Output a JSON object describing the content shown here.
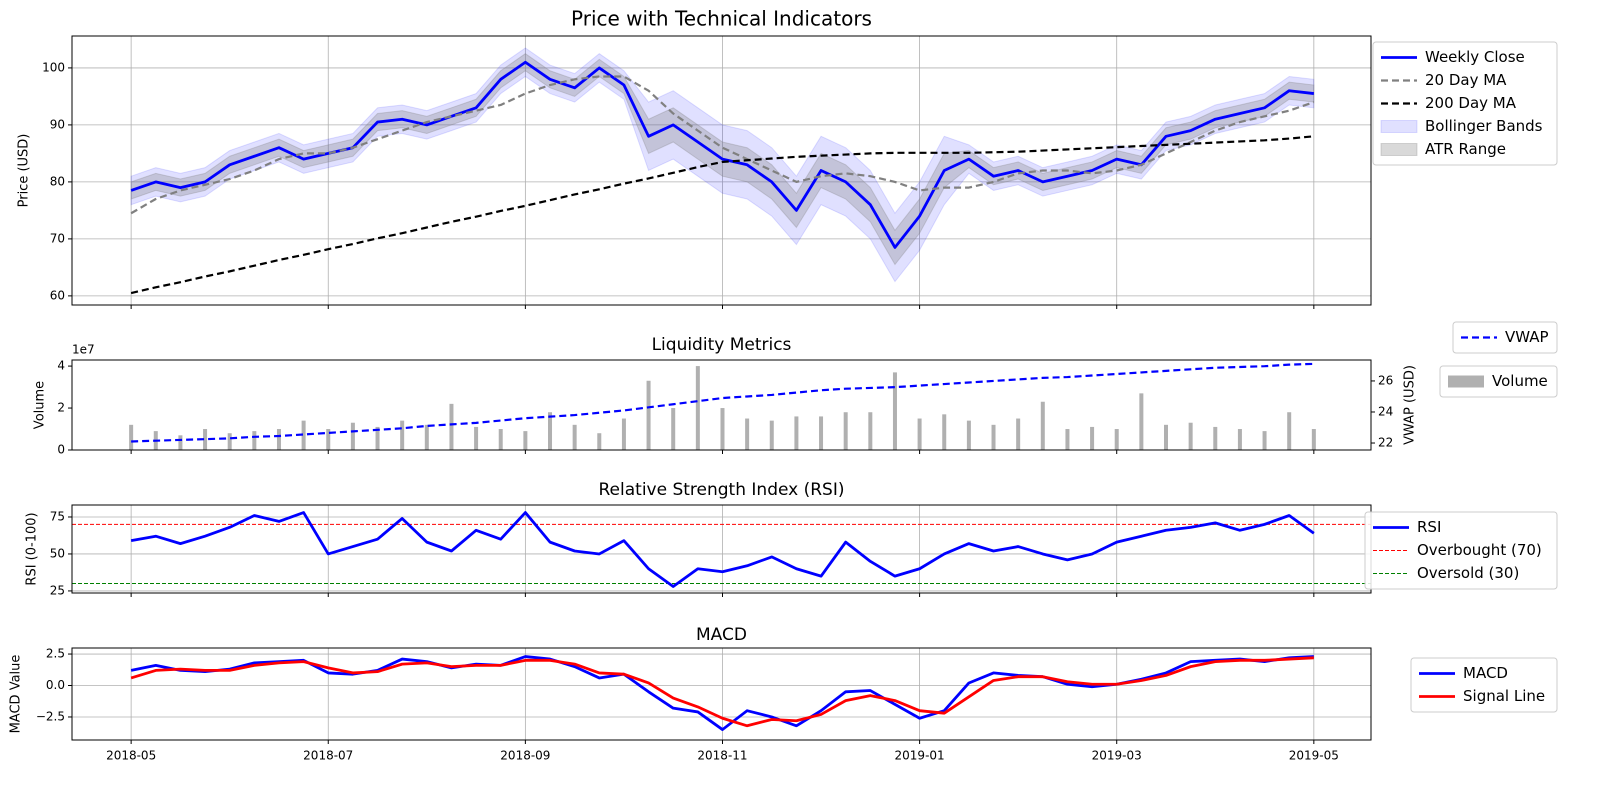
{
  "chart_data": [
    {
      "type": "line",
      "title": "Price with Technical Indicators",
      "ylabel": "Price (USD)",
      "x": [
        0,
        0.25,
        0.5,
        0.75,
        1,
        1.25,
        1.5,
        1.75,
        2,
        2.25,
        2.5,
        2.75,
        3,
        3.25,
        3.5,
        3.75,
        4,
        4.25,
        4.5,
        4.75,
        5,
        5.25,
        5.5,
        5.75,
        6,
        6.25,
        6.5,
        6.75,
        7,
        7.25,
        7.5,
        7.75,
        8,
        8.25,
        8.5,
        8.75,
        9,
        9.25,
        9.5,
        9.75,
        10,
        10.25,
        10.5,
        10.75,
        11,
        11.25,
        11.5,
        11.75,
        12
      ],
      "xlim": [
        -0.6,
        12.58
      ],
      "xticks": [
        0,
        2,
        4,
        6,
        8,
        10,
        12
      ],
      "ylim": [
        58.4,
        105.6
      ],
      "yticks": [
        60,
        70,
        80,
        90,
        100
      ],
      "grid": true,
      "legend": "outside upper right",
      "series": [
        {
          "type": "line",
          "name": "Weekly Close",
          "color": "blue",
          "style": "solid",
          "values": [
            78.5,
            80,
            79,
            80,
            83,
            84.5,
            86,
            84,
            85,
            86,
            90.5,
            91,
            90,
            91.5,
            93,
            98,
            101,
            98,
            96.5,
            100,
            97,
            88,
            90,
            87,
            84,
            83,
            80,
            75,
            82,
            80,
            76,
            68.5,
            74,
            82,
            84,
            81,
            82,
            80,
            81,
            82,
            84,
            83,
            88,
            89,
            91,
            92,
            93,
            96,
            95.5
          ]
        },
        {
          "type": "line",
          "name": "20 Day MA",
          "color": "gray",
          "style": "dashed",
          "values": [
            74.5,
            77,
            78.5,
            79.5,
            80.5,
            82,
            84,
            85,
            85,
            86,
            87.5,
            89,
            90.5,
            91.5,
            92.5,
            93.5,
            95.5,
            97,
            98,
            98.5,
            98.5,
            96,
            92,
            89,
            86,
            84,
            82,
            80,
            81,
            81.5,
            81,
            80,
            78.5,
            79,
            79,
            80,
            81.5,
            82,
            82,
            81.5,
            82,
            83,
            85,
            87,
            89,
            90.5,
            91.5,
            92.5,
            94
          ]
        },
        {
          "type": "line",
          "name": "200 Day MA",
          "color": "black",
          "style": "dashed",
          "values": [
            60.5,
            61.5,
            62.4,
            63.4,
            64.3,
            65.3,
            66.3,
            67.2,
            68.2,
            69.1,
            70.1,
            71,
            72,
            73,
            73.9,
            74.9,
            75.8,
            76.8,
            77.8,
            78.7,
            79.7,
            80.6,
            81.6,
            82.6,
            83.5,
            83.8,
            84.1,
            84.4,
            84.6,
            84.8,
            85,
            85.1,
            85.1,
            85.1,
            85.1,
            85.2,
            85.3,
            85.5,
            85.7,
            85.9,
            86.1,
            86.3,
            86.5,
            86.7,
            86.9,
            87.1,
            87.3,
            87.6,
            88
          ]
        },
        {
          "type": "band",
          "name": "Bollinger Bands",
          "color": "blue",
          "opacity": 0.12,
          "lower": [
            76,
            77.5,
            76.5,
            77.5,
            80.5,
            82,
            83.5,
            81.5,
            82.5,
            83.5,
            88,
            88.5,
            87.5,
            89,
            90.5,
            95.5,
            98.5,
            95.5,
            94,
            97.5,
            94.5,
            82,
            84,
            81,
            78,
            77,
            74,
            69,
            76,
            74,
            70,
            62.5,
            68,
            76,
            81.5,
            78.5,
            79.5,
            77.5,
            78.5,
            79.5,
            81.5,
            80.5,
            85.5,
            86.5,
            88.5,
            89.5,
            90.5,
            93.5,
            93
          ],
          "upper": [
            81,
            82.5,
            81.5,
            82.5,
            85.5,
            87,
            88.5,
            86.5,
            87.5,
            88.5,
            93,
            93.5,
            92.5,
            94,
            95.5,
            100.5,
            103.5,
            100.5,
            99,
            102.5,
            99.5,
            94,
            96,
            93,
            90,
            89,
            86,
            81,
            88,
            86,
            82,
            74.5,
            80,
            88,
            86.5,
            83.5,
            84.5,
            82.5,
            83.5,
            84.5,
            86.5,
            85.5,
            90.5,
            91.5,
            93.5,
            94.5,
            95.5,
            98.5,
            98
          ]
        },
        {
          "type": "band",
          "name": "ATR Range",
          "color": "gray",
          "opacity": 0.3,
          "lower": [
            77,
            78.5,
            77.5,
            78.5,
            81.5,
            83,
            84.5,
            82.5,
            83.5,
            84.5,
            89,
            89.5,
            88.5,
            90,
            91.5,
            96.5,
            99.5,
            96.5,
            95,
            98.5,
            95.5,
            85,
            87,
            84,
            81,
            80,
            77,
            72,
            79,
            77,
            73,
            65.5,
            71,
            79,
            82.5,
            79.5,
            80.5,
            78.5,
            79.5,
            80.5,
            82.5,
            81.5,
            86.5,
            87.5,
            89.5,
            90.5,
            91.5,
            94.5,
            94
          ],
          "upper": [
            80,
            81.5,
            80.5,
            81.5,
            84.5,
            86,
            87.5,
            85.5,
            86.5,
            87.5,
            92,
            92.5,
            91.5,
            93,
            94.5,
            99.5,
            102.5,
            99.5,
            98,
            101.5,
            98.5,
            91,
            93,
            90,
            87,
            86,
            83,
            78,
            85,
            83,
            79,
            71.5,
            77,
            85,
            85.5,
            82.5,
            83.5,
            81.5,
            82.5,
            83.5,
            85.5,
            84.5,
            89.5,
            90.5,
            92.5,
            93.5,
            94.5,
            97.5,
            97
          ]
        }
      ]
    },
    {
      "type": "combo",
      "title": "Liquidity Metrics",
      "ylabel": "Volume",
      "y2label": "VWAP (USD)",
      "offset_label": "1e7",
      "x": [
        0,
        0.25,
        0.5,
        0.75,
        1,
        1.25,
        1.5,
        1.75,
        2,
        2.25,
        2.5,
        2.75,
        3,
        3.25,
        3.5,
        3.75,
        4,
        4.25,
        4.5,
        4.75,
        5,
        5.25,
        5.5,
        5.75,
        6,
        6.25,
        6.5,
        6.75,
        7,
        7.25,
        7.5,
        7.75,
        8,
        8.25,
        8.5,
        8.75,
        9,
        9.25,
        9.5,
        9.75,
        10,
        10.25,
        10.5,
        10.75,
        11,
        11.25,
        11.5,
        11.75,
        12
      ],
      "xlim": [
        -0.6,
        12.58
      ],
      "xticks": [
        0,
        2,
        4,
        6,
        8,
        10,
        12
      ],
      "ylim": [
        0,
        42900000
      ],
      "yticks": [
        0,
        {
          "value": 20000000,
          "label": "2"
        },
        {
          "value": 40000000,
          "label": "4"
        }
      ],
      "y2lim": [
        21.55,
        27.35
      ],
      "y2ticks": [
        22,
        24,
        26
      ],
      "grid": false,
      "legend": "outside right",
      "series": [
        {
          "type": "bar",
          "name": "Volume",
          "color": "#b0b0b0",
          "values": [
            12000000,
            9000000,
            7000000,
            10000000,
            8000000,
            9000000,
            10000000,
            14000000,
            10000000,
            13000000,
            11000000,
            14000000,
            12000000,
            22000000,
            11000000,
            10000000,
            9000000,
            18000000,
            12000000,
            8000000,
            15000000,
            33000000,
            20000000,
            40000000,
            20000000,
            15000000,
            14000000,
            16000000,
            16000000,
            18000000,
            18000000,
            37000000,
            15000000,
            17000000,
            14000000,
            12000000,
            15000000,
            23000000,
            10000000,
            11000000,
            10000000,
            27000000,
            12000000,
            13000000,
            11000000,
            10000000,
            9000000,
            18000000,
            10000000
          ]
        },
        {
          "type": "line",
          "name": "VWAP",
          "color": "blue",
          "style": "dashed",
          "axis": "y2",
          "values": [
            22.1,
            22.15,
            22.2,
            22.25,
            22.3,
            22.4,
            22.45,
            22.55,
            22.65,
            22.75,
            22.85,
            22.95,
            23.1,
            23.2,
            23.3,
            23.45,
            23.6,
            23.7,
            23.8,
            23.95,
            24.1,
            24.3,
            24.5,
            24.7,
            24.9,
            25.0,
            25.1,
            25.25,
            25.4,
            25.5,
            25.55,
            25.6,
            25.7,
            25.8,
            25.9,
            26.0,
            26.1,
            26.2,
            26.25,
            26.35,
            26.45,
            26.55,
            26.65,
            26.75,
            26.85,
            26.9,
            26.95,
            27.05,
            27.1
          ]
        }
      ]
    },
    {
      "type": "line",
      "title": "Relative Strength Index (RSI)",
      "ylabel": "RSI (0-100)",
      "x": [
        0,
        0.25,
        0.5,
        0.75,
        1,
        1.25,
        1.5,
        1.75,
        2,
        2.25,
        2.5,
        2.75,
        3,
        3.25,
        3.5,
        3.75,
        4,
        4.25,
        4.5,
        4.75,
        5,
        5.25,
        5.5,
        5.75,
        6,
        6.25,
        6.5,
        6.75,
        7,
        7.25,
        7.5,
        7.75,
        8,
        8.25,
        8.5,
        8.75,
        9,
        9.25,
        9.5,
        9.75,
        10,
        10.25,
        10.5,
        10.75,
        11,
        11.25,
        11.5,
        11.75,
        12
      ],
      "xlim": [
        -0.6,
        12.58
      ],
      "xticks": [
        0,
        2,
        4,
        6,
        8,
        10,
        12
      ],
      "ylim": [
        23.6,
        83.1
      ],
      "yticks": [
        25,
        50,
        75
      ],
      "grid": true,
      "legend": "outside right",
      "series": [
        {
          "type": "line",
          "name": "RSI",
          "color": "blue",
          "style": "solid",
          "values": [
            59,
            62,
            57,
            62,
            68,
            76,
            72,
            78,
            50,
            55,
            60,
            74,
            58,
            52,
            66,
            60,
            78,
            58,
            52,
            50,
            59,
            40,
            28,
            40,
            38,
            42,
            48,
            40,
            35,
            58,
            45,
            35,
            40,
            50,
            57,
            52,
            55,
            50,
            46,
            50,
            58,
            62,
            66,
            68,
            71,
            66,
            70,
            76,
            64
          ]
        },
        {
          "type": "hline",
          "name": "Overbought (70)",
          "color": "red",
          "value": 70
        },
        {
          "type": "hline",
          "name": "Oversold (30)",
          "color": "green",
          "value": 30
        }
      ]
    },
    {
      "type": "line",
      "title": "MACD",
      "ylabel": "MACD Value",
      "x": [
        0,
        0.25,
        0.5,
        0.75,
        1,
        1.25,
        1.5,
        1.75,
        2,
        2.25,
        2.5,
        2.75,
        3,
        3.25,
        3.5,
        3.75,
        4,
        4.25,
        4.5,
        4.75,
        5,
        5.25,
        5.5,
        5.75,
        6,
        6.25,
        6.5,
        6.75,
        7,
        7.25,
        7.5,
        7.75,
        8,
        8.25,
        8.5,
        8.75,
        9,
        9.25,
        9.5,
        9.75,
        10,
        10.25,
        10.5,
        10.75,
        11,
        11.25,
        11.5,
        11.75,
        12
      ],
      "xlim": [
        -0.6,
        12.58
      ],
      "xticks": [
        {
          "value": 0,
          "label": "2018-05"
        },
        {
          "value": 2,
          "label": "2018-07"
        },
        {
          "value": 4,
          "label": "2018-09"
        },
        {
          "value": 6,
          "label": "2018-11"
        },
        {
          "value": 8,
          "label": "2019-01"
        },
        {
          "value": 10,
          "label": "2019-03"
        },
        {
          "value": 12,
          "label": "2019-05"
        }
      ],
      "ylim": [
        -4.33,
        2.98
      ],
      "yticks": [
        2.5,
        {
          "value": 0,
          "label": "0.0"
        },
        {
          "value": -2.5,
          "label": "−2.5"
        }
      ],
      "grid": true,
      "legend": "outside right",
      "series": [
        {
          "type": "line",
          "name": "MACD",
          "color": "blue",
          "style": "solid",
          "values": [
            1.2,
            1.6,
            1.2,
            1.1,
            1.3,
            1.8,
            1.9,
            2.0,
            1.0,
            0.9,
            1.2,
            2.1,
            1.9,
            1.4,
            1.7,
            1.6,
            2.3,
            2.1,
            1.5,
            0.6,
            0.9,
            -0.5,
            -1.8,
            -2.1,
            -3.5,
            -2.0,
            -2.5,
            -3.2,
            -2.0,
            -0.5,
            -0.4,
            -1.5,
            -2.6,
            -2.0,
            0.2,
            1.0,
            0.8,
            0.7,
            0.1,
            -0.1,
            0.1,
            0.5,
            1.0,
            1.9,
            2.0,
            2.1,
            1.9,
            2.2,
            2.3
          ]
        },
        {
          "type": "line",
          "name": "Signal Line",
          "color": "red",
          "style": "solid",
          "values": [
            0.6,
            1.2,
            1.3,
            1.2,
            1.2,
            1.6,
            1.8,
            1.9,
            1.4,
            1.0,
            1.1,
            1.7,
            1.8,
            1.5,
            1.6,
            1.6,
            2.0,
            2.0,
            1.7,
            1.0,
            0.9,
            0.2,
            -1.0,
            -1.7,
            -2.6,
            -3.2,
            -2.7,
            -2.8,
            -2.3,
            -1.2,
            -0.8,
            -1.2,
            -2.0,
            -2.2,
            -0.9,
            0.4,
            0.7,
            0.7,
            0.3,
            0.1,
            0.1,
            0.4,
            0.8,
            1.5,
            1.9,
            2.0,
            2.0,
            2.1,
            2.2
          ]
        }
      ]
    }
  ]
}
